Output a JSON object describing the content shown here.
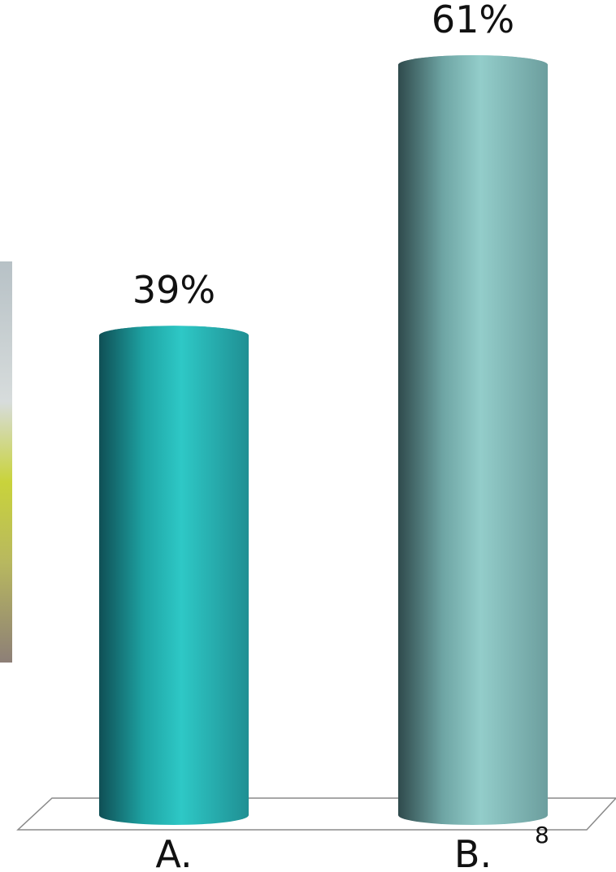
{
  "chart_data": {
    "type": "bar",
    "style": "3d-cylinder",
    "categories": [
      "A.",
      "B."
    ],
    "values": [
      39,
      61
    ],
    "value_labels": [
      "39%",
      "61%"
    ],
    "ylim": [
      0,
      61
    ],
    "grid": false,
    "legend": "none"
  },
  "colors": {
    "series": [
      "#2ec4c4",
      "#8fc7c5"
    ],
    "background": "#ffffff"
  },
  "slide": {
    "page_number": "8"
  },
  "background_photo": {
    "description_icon": "partial-photo-cropped-left-edge"
  }
}
